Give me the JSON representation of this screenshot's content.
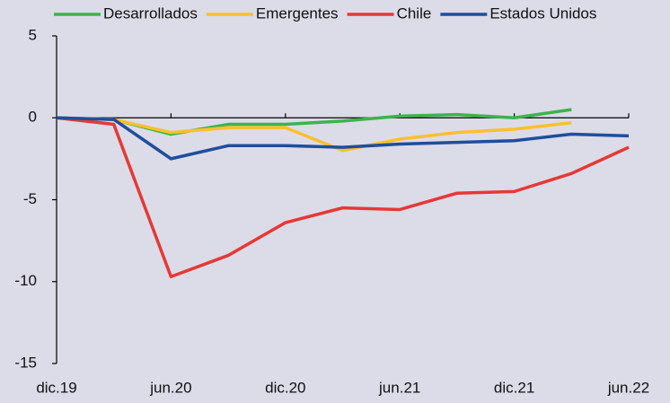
{
  "chart_data": {
    "type": "line",
    "categories": [
      "dic.19",
      null,
      "jun.20",
      null,
      "dic.20",
      null,
      "jun.21",
      null,
      "dic.21",
      null,
      "jun.22"
    ],
    "series": [
      {
        "name": "Desarrollados",
        "color": "#3cb44b",
        "values": [
          0,
          -0.1,
          -1.0,
          -0.4,
          -0.4,
          -0.2,
          0.1,
          0.2,
          0.0,
          0.5,
          null
        ]
      },
      {
        "name": "Emergentes",
        "color": "#fbc02d",
        "values": [
          0,
          -0.1,
          -0.9,
          -0.6,
          -0.6,
          -2.0,
          -1.3,
          -0.9,
          -0.7,
          -0.3,
          null
        ]
      },
      {
        "name": "Chile",
        "color": "#e53935",
        "values": [
          0,
          -0.4,
          -9.7,
          -8.4,
          -6.4,
          -5.5,
          -5.6,
          -4.6,
          -4.5,
          -3.4,
          -1.8
        ]
      },
      {
        "name": "Estados Unidos",
        "color": "#1f4e9c",
        "values": [
          0,
          -0.1,
          -2.5,
          -1.7,
          -1.7,
          -1.8,
          -1.6,
          -1.5,
          -1.4,
          -1.0,
          -1.1
        ]
      }
    ],
    "ylim": [
      -15,
      5
    ],
    "yticks": [
      -15,
      -10,
      -5,
      0,
      5
    ],
    "legend": "top"
  }
}
